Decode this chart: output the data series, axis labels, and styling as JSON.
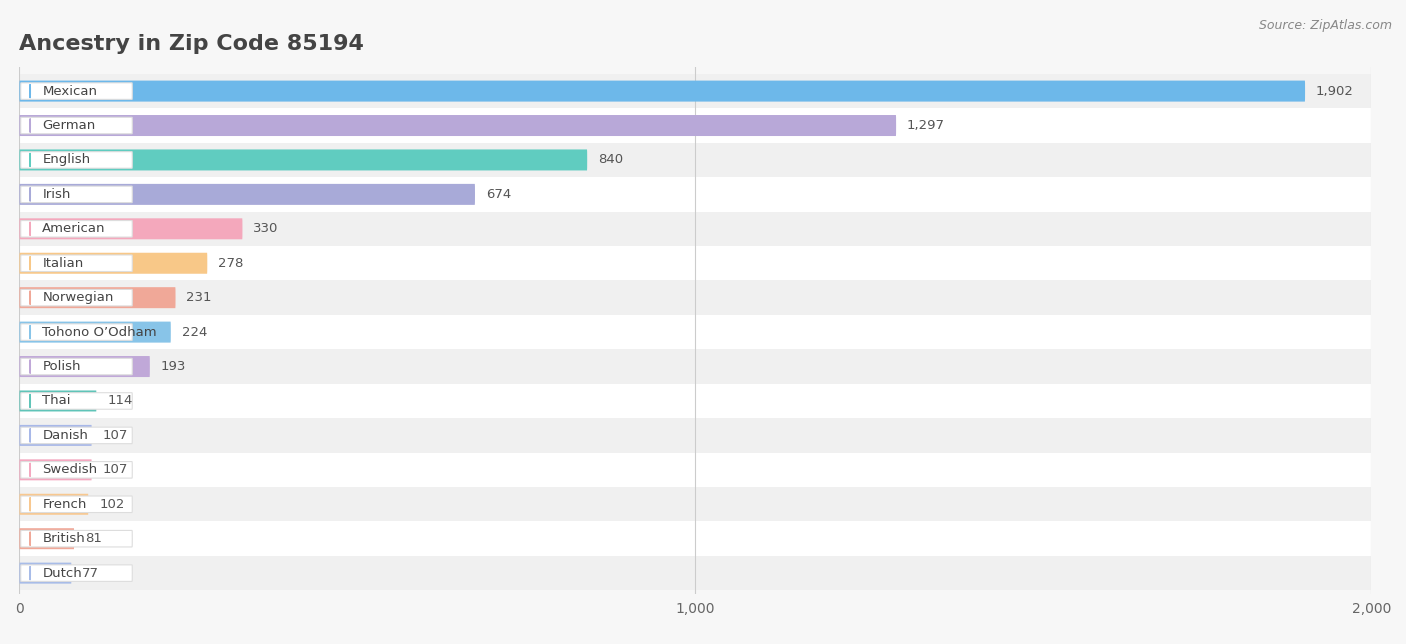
{
  "title": "Ancestry in Zip Code 85194",
  "source": "Source: ZipAtlas.com",
  "categories": [
    "Mexican",
    "German",
    "English",
    "Irish",
    "American",
    "Italian",
    "Norwegian",
    "Tohono O’Odham",
    "Polish",
    "Thai",
    "Danish",
    "Swedish",
    "French",
    "British",
    "Dutch"
  ],
  "values": [
    1902,
    1297,
    840,
    674,
    330,
    278,
    231,
    224,
    193,
    114,
    107,
    107,
    102,
    81,
    77
  ],
  "bar_colors": [
    "#6db8ea",
    "#b8a8d8",
    "#60ccc0",
    "#a8aad8",
    "#f4a8bc",
    "#f8c888",
    "#f0a898",
    "#88c4e8",
    "#c0a8d8",
    "#60c4b8",
    "#a8b8e8",
    "#f4a8c0",
    "#f8c890",
    "#f0a898",
    "#a8bce8"
  ],
  "background_color": "#f7f7f7",
  "row_bg_light": "#f0f0f0",
  "row_bg_dark": "#ffffff",
  "xlim_max": 2000,
  "title_fontsize": 16,
  "title_color": "#444444",
  "source_fontsize": 9,
  "source_color": "#888888"
}
